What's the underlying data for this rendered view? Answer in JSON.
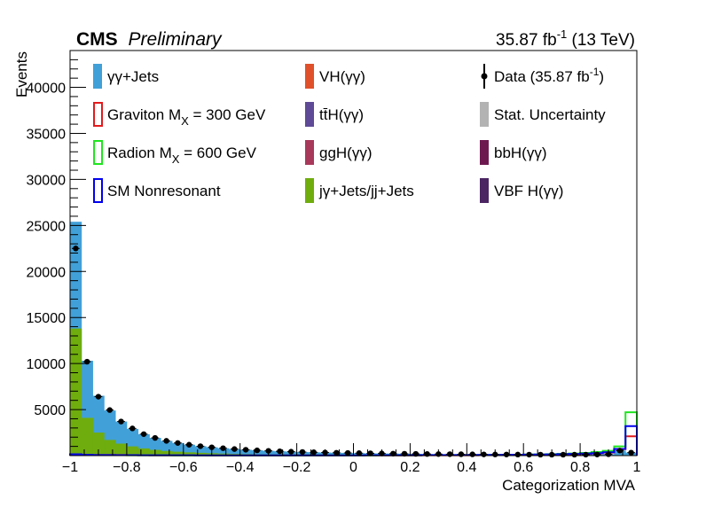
{
  "header": {
    "experiment": "CMS",
    "status": "Preliminary",
    "lumi_prefix": "35.87 fb",
    "lumi_sup": "-1",
    "lumi_suffix": " (13 TeV)"
  },
  "chart_data": {
    "type": "bar",
    "xlabel": "Categorization MVA",
    "ylabel": "Events",
    "xlim": [
      -1,
      1
    ],
    "ylim": [
      0,
      44000
    ],
    "log_y": false,
    "grid": false,
    "legend_position": "top",
    "x_ticks": [
      -1,
      -0.8,
      -0.6,
      -0.4,
      -0.2,
      0,
      0.2,
      0.4,
      0.6,
      0.8,
      1
    ],
    "x_tick_labels": [
      "−1",
      "−0.8",
      "−0.6",
      "−0.4",
      "−0.2",
      "0",
      "0.2",
      "0.4",
      "0.6",
      "0.8",
      "1"
    ],
    "y_ticks": [
      5000,
      10000,
      15000,
      20000,
      25000,
      30000,
      35000,
      40000
    ],
    "y_tick_labels": [
      "5000",
      "10000",
      "15000",
      "20000",
      "25000",
      "30000",
      "35000",
      "40000"
    ],
    "bin_edges": [
      -1,
      -0.96,
      -0.92,
      -0.88,
      -0.84,
      -0.8,
      -0.76,
      -0.72,
      -0.68,
      -0.64,
      -0.6,
      -0.56,
      -0.52,
      -0.48,
      -0.44,
      -0.4,
      -0.36,
      -0.32,
      -0.28,
      -0.24,
      -0.2,
      -0.16,
      -0.12,
      -0.08,
      -0.04,
      0,
      0.04,
      0.08,
      0.12,
      0.16,
      0.2,
      0.24,
      0.28,
      0.32,
      0.36,
      0.4,
      0.44,
      0.48,
      0.52,
      0.56,
      0.6,
      0.64,
      0.68,
      0.72,
      0.76,
      0.8,
      0.84,
      0.88,
      0.92,
      0.96,
      1
    ],
    "stacked_series": [
      {
        "name": "jγ+Jets/jj+Jets",
        "color": "#6fad0e",
        "values": [
          13800,
          4100,
          2500,
          1700,
          1300,
          1000,
          780,
          620,
          500,
          420,
          350,
          300,
          255,
          220,
          190,
          165,
          145,
          130,
          115,
          102,
          92,
          84,
          76,
          70,
          64,
          58,
          53,
          49,
          45,
          42,
          39,
          36,
          34,
          31,
          29,
          27,
          26,
          24,
          23,
          22,
          21,
          20,
          19,
          19,
          18,
          18,
          18,
          18,
          25,
          20
        ]
      },
      {
        "name": "γγ+Jets",
        "color": "#41a0d8",
        "values": [
          11600,
          6200,
          4000,
          3200,
          2400,
          1900,
          1540,
          1300,
          1100,
          950,
          830,
          720,
          645,
          580,
          520,
          470,
          425,
          385,
          350,
          323,
          298,
          276,
          256,
          238,
          222,
          207,
          193,
          181,
          169,
          158,
          148,
          139,
          130,
          123,
          116,
          109,
          103,
          98,
          93,
          89,
          85,
          82,
          80,
          80,
          82,
          88,
          100,
          130,
          520,
          300
        ]
      }
    ],
    "data_series": {
      "name": "Data (35.87 fb-1)",
      "color": "#000000",
      "values": [
        22500,
        10200,
        6400,
        4950,
        3700,
        2950,
        2330,
        1920,
        1600,
        1370,
        1180,
        1020,
        900,
        800,
        710,
        635,
        570,
        515,
        465,
        425,
        390,
        360,
        332,
        308,
        286,
        265,
        246,
        230,
        214,
        200,
        187,
        175,
        164,
        154,
        145,
        136,
        129,
        122,
        116,
        111,
        106,
        102,
        99,
        99,
        100,
        106,
        118,
        148,
        545,
        320
      ]
    },
    "signal_series": [
      {
        "name": "Graviton MX = 300 GeV",
        "color": "#e31a1c",
        "values": [
          150,
          90,
          70,
          60,
          55,
          50,
          45,
          40,
          38,
          35,
          33,
          31,
          30,
          29,
          28,
          27,
          26,
          25,
          25,
          24,
          24,
          24,
          24,
          24,
          25,
          25,
          26,
          27,
          28,
          29,
          30,
          32,
          34,
          36,
          39,
          42,
          46,
          50,
          56,
          62,
          70,
          80,
          95,
          115,
          140,
          180,
          240,
          330,
          700,
          2100
        ]
      },
      {
        "name": "Radion MX = 600 GeV",
        "color": "#1ee61e",
        "values": [
          120,
          70,
          55,
          48,
          43,
          39,
          36,
          33,
          31,
          29,
          28,
          27,
          26,
          25,
          25,
          24,
          24,
          24,
          24,
          24,
          24,
          25,
          25,
          26,
          27,
          28,
          30,
          32,
          34,
          37,
          40,
          44,
          48,
          53,
          58,
          64,
          71,
          80,
          90,
          102,
          117,
          135,
          160,
          190,
          230,
          290,
          380,
          520,
          1000,
          4700
        ]
      },
      {
        "name": "SM Nonresonant",
        "color": "#0000ee",
        "values": [
          140,
          85,
          65,
          55,
          50,
          45,
          41,
          38,
          36,
          34,
          32,
          30,
          29,
          28,
          27,
          27,
          26,
          26,
          26,
          26,
          26,
          27,
          27,
          28,
          29,
          30,
          32,
          34,
          36,
          38,
          41,
          44,
          48,
          52,
          57,
          62,
          68,
          75,
          83,
          92,
          103,
          116,
          132,
          152,
          178,
          215,
          270,
          360,
          720,
          3200
        ]
      }
    ],
    "legend": [
      {
        "name": "γγ+Jets",
        "style": "filled",
        "color": "#41a0d8"
      },
      {
        "name": "VH(γγ)",
        "style": "filled",
        "color": "#e0502a"
      },
      {
        "name": "Data (35.87 fb",
        "sup": "-1",
        "tail": ")",
        "style": "marker",
        "color": "#000000"
      },
      {
        "name": "Graviton M",
        "sub": "X",
        "tail": " = 300 GeV",
        "style": "outline",
        "color": "#e31a1c"
      },
      {
        "name": "tt̄H(γγ)",
        "style": "filled",
        "color": "#5e4a96"
      },
      {
        "name": "Stat. Uncertainty",
        "style": "filled",
        "color": "#b3b3b3"
      },
      {
        "name": "Radion M",
        "sub": "X",
        "tail": " = 600 GeV",
        "style": "outline",
        "color": "#1ee61e"
      },
      {
        "name": "ggH(γγ)",
        "style": "filled",
        "color": "#a8395b"
      },
      {
        "name": "bbH(γγ)",
        "style": "filled",
        "color": "#6d1950"
      },
      {
        "name": "SM Nonresonant",
        "style": "outline",
        "color": "#0000ee"
      },
      {
        "name": "jγ+Jets/jj+Jets",
        "style": "filled",
        "color": "#6fad0e"
      },
      {
        "name": "VBF H(γγ)",
        "style": "filled",
        "color": "#4b2562"
      }
    ]
  }
}
